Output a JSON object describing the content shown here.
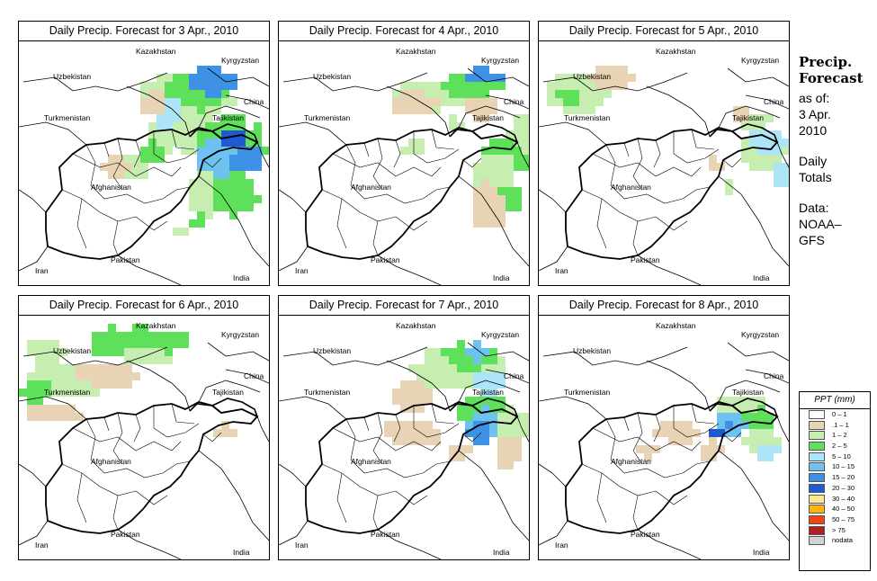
{
  "panels": [
    {
      "title_prefix": "Daily Precip. Forecast for ",
      "date": "3 Apr., 2010"
    },
    {
      "title_prefix": "Daily Precip. Forecast for ",
      "date": "4 Apr., 2010"
    },
    {
      "title_prefix": "Daily Precip. Forecast for ",
      "date": "5 Apr., 2010"
    },
    {
      "title_prefix": "Daily Precip. Forecast for ",
      "date": "6 Apr., 2010"
    },
    {
      "title_prefix": "Daily Precip. Forecast for ",
      "date": "7 Apr., 2010"
    },
    {
      "title_prefix": "Daily Precip. Forecast for ",
      "date": "8 Apr., 2010"
    }
  ],
  "map_labels": {
    "uzbekistan": "Uzbekistan",
    "kazakhstan": "Kazakhstan",
    "kyrgyzstan": "Kyrgyzstan",
    "china": "China",
    "turkmenistan": "Turkmenistan",
    "tajikistan": "Tajikistan",
    "afghanistan": "Afghanistan",
    "pakistan": "Pakistan",
    "iran": "Iran",
    "india": "India"
  },
  "sidebar": {
    "heading_line1": "Precip.",
    "heading_line2": "Forecast",
    "asof_line1": "as of:",
    "asof_line2": "3 Apr.",
    "asof_line3": "2010",
    "totals_line1": "Daily",
    "totals_line2": "Totals",
    "data_line1": "Data:",
    "data_line2": "NOAA–",
    "data_line3": "GFS"
  },
  "legend": {
    "title": "PPT (mm)",
    "classes": [
      {
        "label": "0 – 1",
        "color": "#ffffff"
      },
      {
        "label": ".1 – 1",
        "color": "#e8d4b4"
      },
      {
        "label": "1 – 2",
        "color": "#c6eeb0"
      },
      {
        "label": "2 – 5",
        "color": "#5ee05a"
      },
      {
        "label": "5 – 10",
        "color": "#aee4f8"
      },
      {
        "label": "10 – 15",
        "color": "#6ec2f0"
      },
      {
        "label": "15 – 20",
        "color": "#3e92e6"
      },
      {
        "label": "20 – 30",
        "color": "#1e5ad2"
      },
      {
        "label": "30 – 40",
        "color": "#fae68c"
      },
      {
        "label": "40 – 50",
        "color": "#fab414"
      },
      {
        "label": "50 – 75",
        "color": "#f04614"
      },
      {
        "label": "> 75",
        "color": "#b41e1e"
      },
      {
        "label": "nodata",
        "color": "#d2d2d2"
      }
    ]
  }
}
